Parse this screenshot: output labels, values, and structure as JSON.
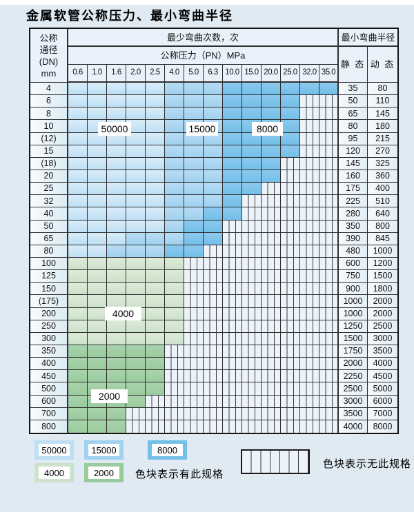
{
  "title": "金属软管公称压力、最小弯曲半径",
  "table": {
    "dn_header_lines": [
      "公称",
      "通径",
      "(DN)",
      "mm"
    ],
    "cycles_header": "最少弯曲次数，次",
    "pressure_header": "公称压力（PN）MPa",
    "radius_header": "最小弯曲半径",
    "static_header": "静 态",
    "dynamic_header": "动 态",
    "pressure_columns": [
      "0.6",
      "1.0",
      "1.6",
      "2.0",
      "2.5",
      "4.0",
      "5.0",
      "6.3",
      "10.0",
      "15.0",
      "20.0",
      "25.0",
      "32.0",
      "35.0"
    ],
    "rows": [
      {
        "dn": "4",
        "static": "35",
        "dynamic": "80",
        "spec": [
          "50k",
          "50k",
          "50k",
          "50k",
          "50k",
          "15k",
          "15k",
          "15k",
          "8k",
          "8k",
          "8k",
          "8k",
          "8k",
          "8k"
        ]
      },
      {
        "dn": "6",
        "static": "50",
        "dynamic": "110",
        "spec": [
          "50k",
          "50k",
          "50k",
          "50k",
          "50k",
          "15k",
          "15k",
          "15k",
          "8k",
          "8k",
          "8k",
          "8k",
          "none",
          "none"
        ]
      },
      {
        "dn": "8",
        "static": "65",
        "dynamic": "145",
        "spec": [
          "50k",
          "50k",
          "50k",
          "50k",
          "50k",
          "15k",
          "15k",
          "15k",
          "8k",
          "8k",
          "8k",
          "8k",
          "none",
          "none"
        ]
      },
      {
        "dn": "10",
        "static": "80",
        "dynamic": "180",
        "spec": [
          "50k",
          "50k",
          "50k",
          "50k",
          "50k",
          "15k",
          "15k",
          "15k",
          "8k",
          "8k",
          "8k",
          "8k",
          "none",
          "none"
        ]
      },
      {
        "dn": "(12)",
        "static": "95",
        "dynamic": "215",
        "spec": [
          "50k",
          "50k",
          "50k",
          "50k",
          "50k",
          "15k",
          "15k",
          "15k",
          "8k",
          "8k",
          "8k",
          "8k",
          "none",
          "none"
        ]
      },
      {
        "dn": "15",
        "static": "120",
        "dynamic": "270",
        "spec": [
          "50k",
          "50k",
          "50k",
          "50k",
          "50k",
          "15k",
          "15k",
          "15k",
          "8k",
          "8k",
          "8k",
          "8k",
          "none",
          "none"
        ]
      },
      {
        "dn": "(18)",
        "static": "145",
        "dynamic": "325",
        "spec": [
          "50k",
          "50k",
          "50k",
          "50k",
          "50k",
          "15k",
          "15k",
          "15k",
          "8k",
          "8k",
          "8k",
          "none",
          "none",
          "none"
        ]
      },
      {
        "dn": "20",
        "static": "160",
        "dynamic": "360",
        "spec": [
          "50k",
          "50k",
          "50k",
          "50k",
          "50k",
          "15k",
          "15k",
          "15k",
          "8k",
          "8k",
          "8k",
          "none",
          "none",
          "none"
        ]
      },
      {
        "dn": "25",
        "static": "175",
        "dynamic": "400",
        "spec": [
          "50k",
          "50k",
          "50k",
          "50k",
          "50k",
          "15k",
          "15k",
          "15k",
          "8k",
          "8k",
          "none",
          "none",
          "none",
          "none"
        ]
      },
      {
        "dn": "32",
        "static": "225",
        "dynamic": "510",
        "spec": [
          "50k",
          "50k",
          "50k",
          "50k",
          "50k",
          "15k",
          "15k",
          "15k",
          "8k",
          "none",
          "none",
          "none",
          "none",
          "none"
        ]
      },
      {
        "dn": "40",
        "static": "280",
        "dynamic": "640",
        "spec": [
          "50k",
          "50k",
          "50k",
          "50k",
          "50k",
          "15k",
          "15k",
          "8k",
          "8k",
          "none",
          "none",
          "none",
          "none",
          "none"
        ]
      },
      {
        "dn": "50",
        "static": "350",
        "dynamic": "800",
        "spec": [
          "50k",
          "50k",
          "50k",
          "50k",
          "50k",
          "15k",
          "8k",
          "8k",
          "none",
          "none",
          "none",
          "none",
          "none",
          "none"
        ]
      },
      {
        "dn": "65",
        "static": "390",
        "dynamic": "845",
        "spec": [
          "50k",
          "50k",
          "50k",
          "15k",
          "15k",
          "15k",
          "8k",
          "8k",
          "none",
          "none",
          "none",
          "none",
          "none",
          "none"
        ]
      },
      {
        "dn": "80",
        "static": "480",
        "dynamic": "1000",
        "spec": [
          "50k",
          "50k",
          "15k",
          "15k",
          "15k",
          "8k",
          "8k",
          "none",
          "none",
          "none",
          "none",
          "none",
          "none",
          "none"
        ]
      },
      {
        "dn": "100",
        "static": "600",
        "dynamic": "1200",
        "spec": [
          "4k",
          "4k",
          "4k",
          "4k",
          "4k",
          "4k",
          "none",
          "none",
          "none",
          "none",
          "none",
          "none",
          "none",
          "none"
        ]
      },
      {
        "dn": "125",
        "static": "750",
        "dynamic": "1500",
        "spec": [
          "4k",
          "4k",
          "4k",
          "4k",
          "4k",
          "4k",
          "none",
          "none",
          "none",
          "none",
          "none",
          "none",
          "none",
          "none"
        ]
      },
      {
        "dn": "150",
        "static": "900",
        "dynamic": "1800",
        "spec": [
          "4k",
          "4k",
          "4k",
          "4k",
          "4k",
          "4k",
          "none",
          "none",
          "none",
          "none",
          "none",
          "none",
          "none",
          "none"
        ]
      },
      {
        "dn": "(175)",
        "static": "1000",
        "dynamic": "2000",
        "spec": [
          "4k",
          "4k",
          "4k",
          "4k",
          "4k",
          "4k",
          "none",
          "none",
          "none",
          "none",
          "none",
          "none",
          "none",
          "none"
        ]
      },
      {
        "dn": "200",
        "static": "1000",
        "dynamic": "2000",
        "spec": [
          "4k",
          "4k",
          "4k",
          "4k",
          "4k",
          "4k",
          "none",
          "none",
          "none",
          "none",
          "none",
          "none",
          "none",
          "none"
        ]
      },
      {
        "dn": "250",
        "static": "1250",
        "dynamic": "2500",
        "spec": [
          "4k",
          "4k",
          "4k",
          "4k",
          "4k",
          "4k",
          "none",
          "none",
          "none",
          "none",
          "none",
          "none",
          "none",
          "none"
        ]
      },
      {
        "dn": "300",
        "static": "1500",
        "dynamic": "3000",
        "spec": [
          "4k",
          "4k",
          "4k",
          "4k",
          "4k",
          "4k",
          "none",
          "none",
          "none",
          "none",
          "none",
          "none",
          "none",
          "none"
        ]
      },
      {
        "dn": "350",
        "static": "1750",
        "dynamic": "3500",
        "spec": [
          "2k",
          "2k",
          "2k",
          "2k",
          "2k",
          "none",
          "none",
          "none",
          "none",
          "none",
          "none",
          "none",
          "none",
          "none"
        ]
      },
      {
        "dn": "400",
        "static": "2000",
        "dynamic": "4000",
        "spec": [
          "2k",
          "2k",
          "2k",
          "2k",
          "2k",
          "none",
          "none",
          "none",
          "none",
          "none",
          "none",
          "none",
          "none",
          "none"
        ]
      },
      {
        "dn": "450",
        "static": "2250",
        "dynamic": "4500",
        "spec": [
          "2k",
          "2k",
          "2k",
          "2k",
          "2k",
          "none",
          "none",
          "none",
          "none",
          "none",
          "none",
          "none",
          "none",
          "none"
        ]
      },
      {
        "dn": "500",
        "static": "2500",
        "dynamic": "5000",
        "spec": [
          "2k",
          "2k",
          "2k",
          "2k",
          "2k",
          "none",
          "none",
          "none",
          "none",
          "none",
          "none",
          "none",
          "none",
          "none"
        ]
      },
      {
        "dn": "600",
        "static": "3000",
        "dynamic": "6000",
        "spec": [
          "2k",
          "2k",
          "2k",
          "2k",
          "none",
          "none",
          "none",
          "none",
          "none",
          "none",
          "none",
          "none",
          "none",
          "none"
        ]
      },
      {
        "dn": "700",
        "static": "3500",
        "dynamic": "7000",
        "spec": [
          "2k",
          "2k",
          "2k",
          "none",
          "none",
          "none",
          "none",
          "none",
          "none",
          "none",
          "none",
          "none",
          "none",
          "none"
        ]
      },
      {
        "dn": "800",
        "static": "4000",
        "dynamic": "8000",
        "spec": [
          "2k",
          "2k",
          "2k",
          "none",
          "none",
          "none",
          "none",
          "none",
          "none",
          "none",
          "none",
          "none",
          "none",
          "none"
        ]
      }
    ]
  },
  "overlays": {
    "o50000": "50000",
    "o15000": "15000",
    "o8000": "8000",
    "o4000": "4000",
    "o2000": "2000"
  },
  "legend": {
    "l50000": "50000",
    "l15000": "15000",
    "l8000": "8000",
    "l4000": "4000",
    "l2000": "2000",
    "has_spec_text": "色块表示有此规格",
    "no_spec_text": "色块表示无此规格"
  },
  "colors": {
    "page_bg": "#dfeaf2",
    "header_bg": "#e9f2fa",
    "c50k_light": "#d9edf9",
    "c50k": "#bedff4",
    "c15k_light": "#b7dcf4",
    "c15k": "#a0d1ef",
    "c8k_light": "#8cc9ee",
    "c8k": "#73bfe9",
    "c4k_light": "#dcebd8",
    "c4k": "#cde2ca",
    "c2k_light": "#aad3ac",
    "c2k": "#99cb9d",
    "hatch_bg": "#ecf3fa",
    "hatch_line": "#3b3b3b"
  }
}
